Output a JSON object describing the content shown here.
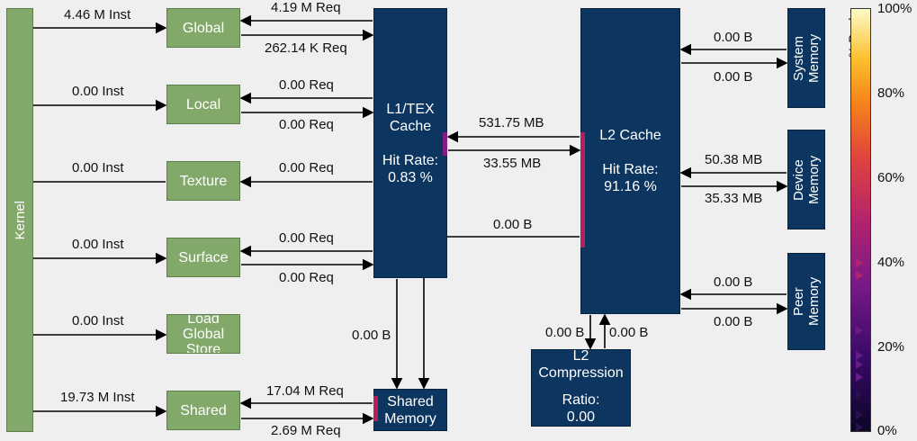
{
  "kernel": {
    "label": "Kernel"
  },
  "units": [
    {
      "name": "Global",
      "inst": "4.46 M Inst",
      "req_out": "4.19 M Req",
      "req_in": "262.14 K Req"
    },
    {
      "name": "Local",
      "inst": "0.00 Inst",
      "req_out": "0.00 Req",
      "req_in": "0.00 Req"
    },
    {
      "name": "Texture",
      "inst": "0.00 Inst",
      "req_out": "0.00 Req"
    },
    {
      "name": "Surface",
      "inst": "0.00 Inst",
      "req_out": "0.00 Req",
      "req_in": "0.00 Req"
    },
    {
      "name": "Load Global Store",
      "inst": "0.00 Inst"
    },
    {
      "name": "Shared",
      "inst": "19.73 M Inst",
      "req_out": "17.04 M Req",
      "req_in": "2.69 M Req"
    }
  ],
  "l1": {
    "title": "L1/TEX Cache",
    "hit_label": "Hit Rate:",
    "hit_value": "0.83 %"
  },
  "l2": {
    "title": "L2 Cache",
    "hit_label": "Hit Rate:",
    "hit_value": "91.16 %"
  },
  "shared_mem": {
    "title": "Shared Memory"
  },
  "l2comp": {
    "title": "L2 Compression",
    "ratio_label": "Ratio:",
    "ratio_value": "0.00"
  },
  "memories": [
    {
      "name": "System Memory",
      "in": "0.00 B",
      "out": "0.00 B"
    },
    {
      "name": "Device Memory",
      "in": "50.38 MB",
      "out": "35.33 MB"
    },
    {
      "name": "Peer Memory",
      "in": "0.00 B",
      "out": "0.00 B"
    }
  ],
  "links": {
    "l1_to_l2": "531.75 MB",
    "l2_to_l1": "33.55 MB",
    "l2_to_shared": "0.00 B",
    "l1_to_shared": "0.00 B",
    "l2_to_comp": "0.00 B",
    "comp_to_l2": "0.00 B"
  },
  "scale": {
    "title": "% Peak",
    "ticks": [
      "100%",
      "80%",
      "60%",
      "40%",
      "20%",
      "0%"
    ],
    "colors": {
      "low": "#0b0626",
      "mid": "#b5236c",
      "high": "#fcfac8"
    },
    "markers_pct": [
      40,
      37,
      24,
      18,
      16,
      13,
      9,
      4,
      1
    ]
  }
}
